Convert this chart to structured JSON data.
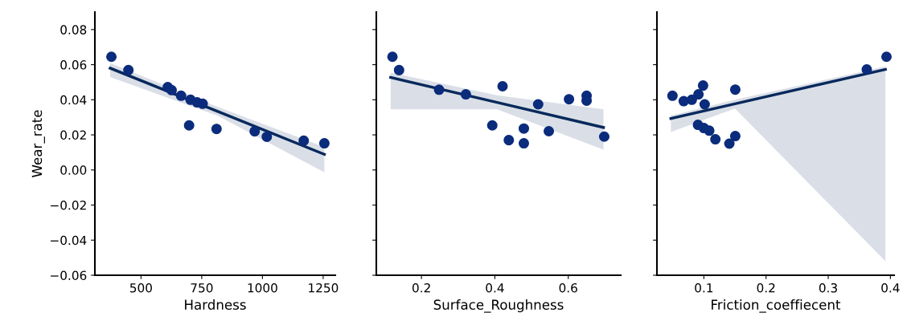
{
  "chart_data": [
    {
      "type": "scatter",
      "xlabel": "Hardness",
      "ylabel": "Wear_rate",
      "xlim": [
        310,
        1300
      ],
      "xticks": [
        500,
        750,
        1000,
        1250
      ],
      "ylim": [
        -0.06,
        0.09
      ],
      "yticks": [
        {
          "value": 0.08,
          "label": "0.08"
        },
        {
          "value": 0.06,
          "label": "0.06"
        },
        {
          "value": 0.04,
          "label": "0.04"
        },
        {
          "value": 0.02,
          "label": "0.02"
        },
        {
          "value": 0.0,
          "label": "0.00"
        },
        {
          "value": -0.02,
          "label": "−0.02"
        },
        {
          "value": -0.04,
          "label": "−0.04"
        },
        {
          "value": -0.06,
          "label": "−0.06"
        }
      ],
      "grid": false,
      "series": [
        {
          "marker": "circle",
          "color": "#0b2c7c",
          "x": [
            378,
            448,
            610,
            626,
            665,
            704,
            731,
            754,
            698,
            811,
            968,
            1018,
            1170,
            1255
          ],
          "values": [
            0.0645,
            0.0569,
            0.0472,
            0.0455,
            0.0423,
            0.04,
            0.0385,
            0.0377,
            0.0254,
            0.0234,
            0.022,
            0.0189,
            0.0167,
            0.0152
          ]
        },
        {
          "type": "line",
          "color": "#08295c",
          "x": [
            373,
            814,
            1255
          ],
          "values": [
            0.058,
            0.0335,
            0.0089
          ],
          "lower": [
            0.053,
            0.031,
            -0.0014
          ],
          "upper": [
            0.061,
            0.036,
            0.013
          ]
        }
      ]
    },
    {
      "type": "scatter",
      "xlabel": "Surface_Roughness",
      "xlim": [
        0.077,
        0.743
      ],
      "xticks": [
        0.2,
        0.4,
        0.6
      ],
      "ylim": [
        -0.06,
        0.09
      ],
      "yticks": [
        0.08,
        0.06,
        0.04,
        0.02,
        0.0,
        -0.02,
        -0.04,
        -0.06
      ],
      "tick_labels": "x",
      "grid": false,
      "series": [
        {
          "marker": "circle",
          "color": "#0b2c7c",
          "x": [
            0.121,
            0.139,
            0.248,
            0.321,
            0.421,
            0.393,
            0.438,
            0.479,
            0.479,
            0.518,
            0.547,
            0.602,
            0.65,
            0.65,
            0.698
          ],
          "values": [
            0.0645,
            0.0569,
            0.0457,
            0.0431,
            0.0477,
            0.0254,
            0.017,
            0.0236,
            0.0152,
            0.0374,
            0.0221,
            0.0403,
            0.0423,
            0.0395,
            0.019
          ]
        },
        {
          "type": "line",
          "color": "#08295c",
          "x": [
            0.116,
            0.406,
            0.696
          ],
          "values": [
            0.0527,
            0.0385,
            0.0242
          ],
          "lower": [
            0.0346,
            0.0345,
            0.0116
          ],
          "upper": [
            0.0555,
            0.0425,
            0.0346
          ]
        }
      ]
    },
    {
      "type": "scatter",
      "xlabel": "Friction_coeffiecent",
      "xlim": [
        0.0245,
        0.406
      ],
      "xticks": [
        0.1,
        0.2,
        0.3,
        0.4
      ],
      "ylim": [
        -0.06,
        0.09
      ],
      "yticks": [
        0.08,
        0.06,
        0.04,
        0.02,
        0.0,
        -0.02,
        -0.04,
        -0.06
      ],
      "tick_labels": "x",
      "grid": false,
      "series": [
        {
          "marker": "circle",
          "color": "#0b2c7c",
          "x": [
            0.0495,
            0.0676,
            0.0806,
            0.0913,
            0.0987,
            0.1013,
            0.0905,
            0.1,
            0.1087,
            0.1185,
            0.141,
            0.1505,
            0.1505,
            0.362,
            0.3937
          ],
          "values": [
            0.0423,
            0.0392,
            0.04,
            0.0431,
            0.0481,
            0.0374,
            0.0257,
            0.0239,
            0.0224,
            0.0175,
            0.015,
            0.0193,
            0.0458,
            0.0573,
            0.0645
          ]
        },
        {
          "type": "line",
          "color": "#08295c",
          "x": [
            0.0469,
            0.15,
            0.392
          ],
          "values": [
            0.0293,
            0.0377,
            0.0573
          ],
          "lower": [
            0.0216,
            0.035,
            -0.052
          ],
          "upper": [
            0.031,
            0.04,
            0.059
          ]
        }
      ]
    }
  ]
}
